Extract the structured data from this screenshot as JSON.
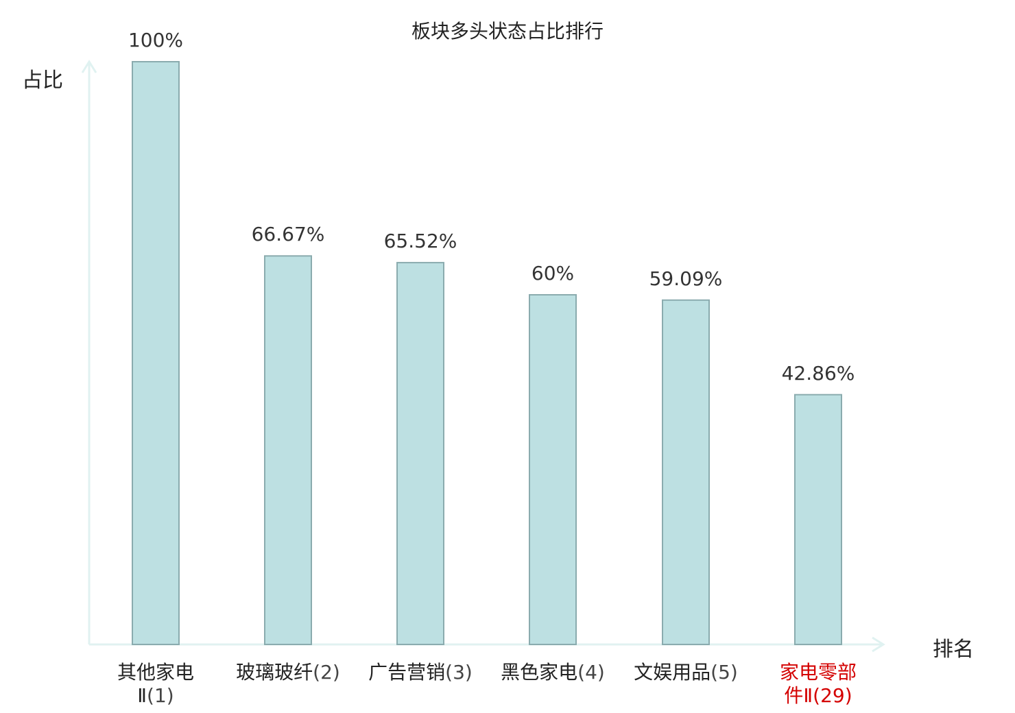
{
  "chart_data": {
    "type": "bar",
    "title": "板块多头状态占比排行",
    "ylabel": "占比",
    "xlabel": "排名",
    "ylim": [
      0,
      100
    ],
    "grid": false,
    "categories": [
      {
        "name": "其他家电Ⅱ",
        "rank": "(1)",
        "highlight": false
      },
      {
        "name": "玻璃玻纤",
        "rank": "(2)",
        "highlight": false
      },
      {
        "name": "广告营销",
        "rank": "(3)",
        "highlight": false
      },
      {
        "name": "黑色家电",
        "rank": "(4)",
        "highlight": false
      },
      {
        "name": "文娱用品",
        "rank": "(5)",
        "highlight": false
      },
      {
        "name": "家电零部件Ⅱ",
        "rank": "(29)",
        "highlight": true
      }
    ],
    "values": [
      100,
      66.67,
      65.52,
      60,
      59.09,
      42.86
    ],
    "value_labels": [
      "100%",
      "66.67%",
      "65.52%",
      "60%",
      "59.09%",
      "42.86%"
    ]
  },
  "colors": {
    "bar_fill": "#bde0e2",
    "bar_stroke": "#8aabae",
    "axis": "#e0f2f1",
    "highlight": "#d40000",
    "text": "#222222"
  }
}
